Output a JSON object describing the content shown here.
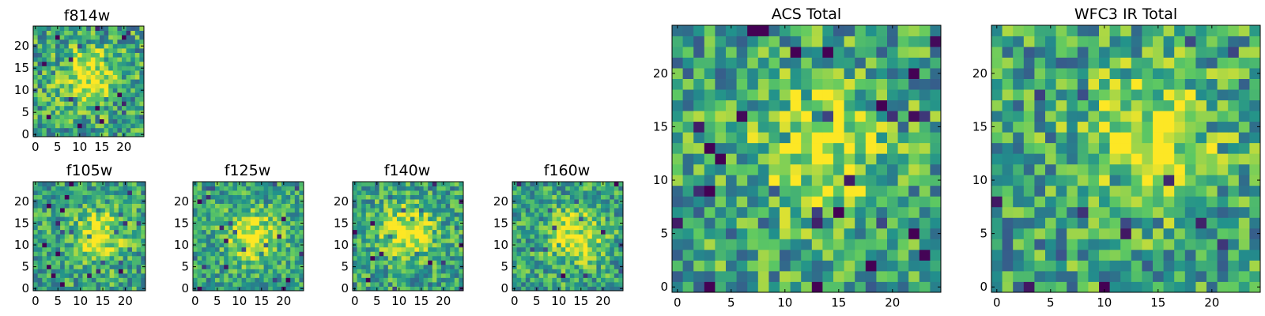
{
  "figure": {
    "kind": "grid of pixel-intensity image panels",
    "colormap": [
      "#440154",
      "#3b528b",
      "#21918c",
      "#5ec962",
      "#fde725"
    ]
  },
  "chart_data": [
    {
      "type": "heatmap",
      "title": "f814w",
      "grid_size": 25,
      "xlim": [
        0,
        24
      ],
      "ylim": [
        0,
        24
      ],
      "xticks": [
        0,
        5,
        10,
        15,
        20
      ],
      "yticks": [
        0,
        5,
        10,
        15,
        20
      ],
      "peak": {
        "x": 12,
        "y": 13
      },
      "signal": 0.42,
      "noise": 0.3,
      "seed": 11
    },
    {
      "type": "heatmap",
      "title": "f105w",
      "grid_size": 25,
      "xlim": [
        0,
        24
      ],
      "ylim": [
        0,
        24
      ],
      "xticks": [
        0,
        5,
        10,
        15,
        20
      ],
      "yticks": [
        0,
        5,
        10,
        15,
        20
      ],
      "peak": {
        "x": 14,
        "y": 12
      },
      "signal": 0.4,
      "noise": 0.26,
      "seed": 23
    },
    {
      "type": "heatmap",
      "title": "f125w",
      "grid_size": 25,
      "xlim": [
        0,
        24
      ],
      "ylim": [
        0,
        24
      ],
      "xticks": [
        0,
        5,
        10,
        15,
        20
      ],
      "yticks": [
        0,
        5,
        10,
        15,
        20
      ],
      "peak": {
        "x": 13,
        "y": 12
      },
      "signal": 0.42,
      "noise": 0.24,
      "seed": 37
    },
    {
      "type": "heatmap",
      "title": "f140w",
      "grid_size": 25,
      "xlim": [
        0,
        24
      ],
      "ylim": [
        0,
        24
      ],
      "xticks": [
        0,
        5,
        10,
        15,
        20
      ],
      "yticks": [
        0,
        5,
        10,
        15,
        20
      ],
      "peak": {
        "x": 12,
        "y": 13
      },
      "signal": 0.45,
      "noise": 0.26,
      "seed": 41
    },
    {
      "type": "heatmap",
      "title": "f160w",
      "grid_size": 25,
      "xlim": [
        0,
        24
      ],
      "ylim": [
        0,
        24
      ],
      "xticks": [
        0,
        5,
        10,
        15,
        20
      ],
      "yticks": [
        0,
        5,
        10,
        15,
        20
      ],
      "peak": {
        "x": 14,
        "y": 12
      },
      "signal": 0.45,
      "noise": 0.26,
      "seed": 53
    },
    {
      "type": "heatmap",
      "title": "ACS Total",
      "grid_size": 25,
      "xlim": [
        0,
        24
      ],
      "ylim": [
        0,
        24
      ],
      "xticks": [
        0,
        5,
        10,
        15,
        20
      ],
      "yticks": [
        0,
        5,
        10,
        15,
        20
      ],
      "peak": {
        "x": 13,
        "y": 13
      },
      "signal": 0.38,
      "noise": 0.3,
      "seed": 67
    },
    {
      "type": "heatmap",
      "title": "WFC3 IR Total",
      "grid_size": 25,
      "xlim": [
        0,
        24
      ],
      "ylim": [
        0,
        24
      ],
      "xticks": [
        0,
        5,
        10,
        15,
        20
      ],
      "yticks": [
        0,
        5,
        10,
        15,
        20
      ],
      "peak": {
        "x": 14,
        "y": 14
      },
      "signal": 0.38,
      "noise": 0.3,
      "seed": 79
    }
  ]
}
